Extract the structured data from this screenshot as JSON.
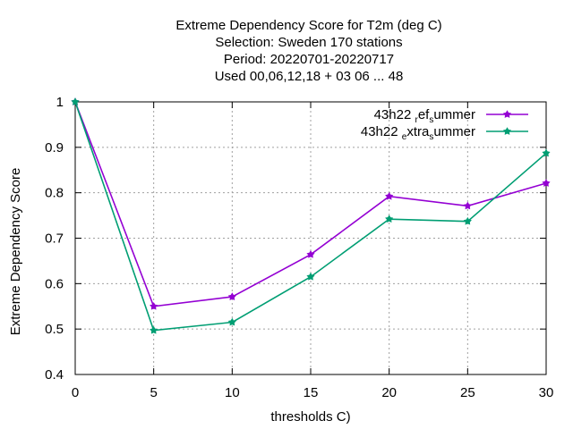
{
  "chart_data": {
    "type": "line",
    "title": [
      "Extreme Dependency Score  for T2m (deg C)",
      "Selection: Sweden    170 stations",
      "Period: 20220701-20220717",
      "Used  00,06,12,18  + 03 06 ... 48"
    ],
    "xlabel": "thresholds C)",
    "ylabel": "Extreme Dependency Score",
    "x": [
      0,
      5,
      10,
      15,
      20,
      25,
      30
    ],
    "xticks": [
      "0",
      "5",
      "10",
      "15",
      "20",
      "25",
      "30"
    ],
    "yticks": [
      "0.4",
      "0.5",
      "0.6",
      "0.7",
      "0.8",
      "0.9",
      "1"
    ],
    "xlim": [
      0,
      30
    ],
    "ylim": [
      0.4,
      1.0
    ],
    "grid": true,
    "legend_position": "top-right",
    "series": [
      {
        "name": "43h22_ref_summer",
        "legend_parts": [
          "43h22 ",
          "r",
          "ef",
          "s",
          "ummer"
        ],
        "color": "#9400d3",
        "values": [
          1.0,
          0.55,
          0.571,
          0.664,
          0.792,
          0.771,
          0.821
        ]
      },
      {
        "name": "43h22_extra_summer",
        "legend_parts": [
          "43h22 ",
          "e",
          "xtra",
          "s",
          "ummer"
        ],
        "color": "#009e73",
        "values": [
          1.0,
          0.497,
          0.515,
          0.615,
          0.742,
          0.737,
          0.887
        ]
      }
    ]
  }
}
